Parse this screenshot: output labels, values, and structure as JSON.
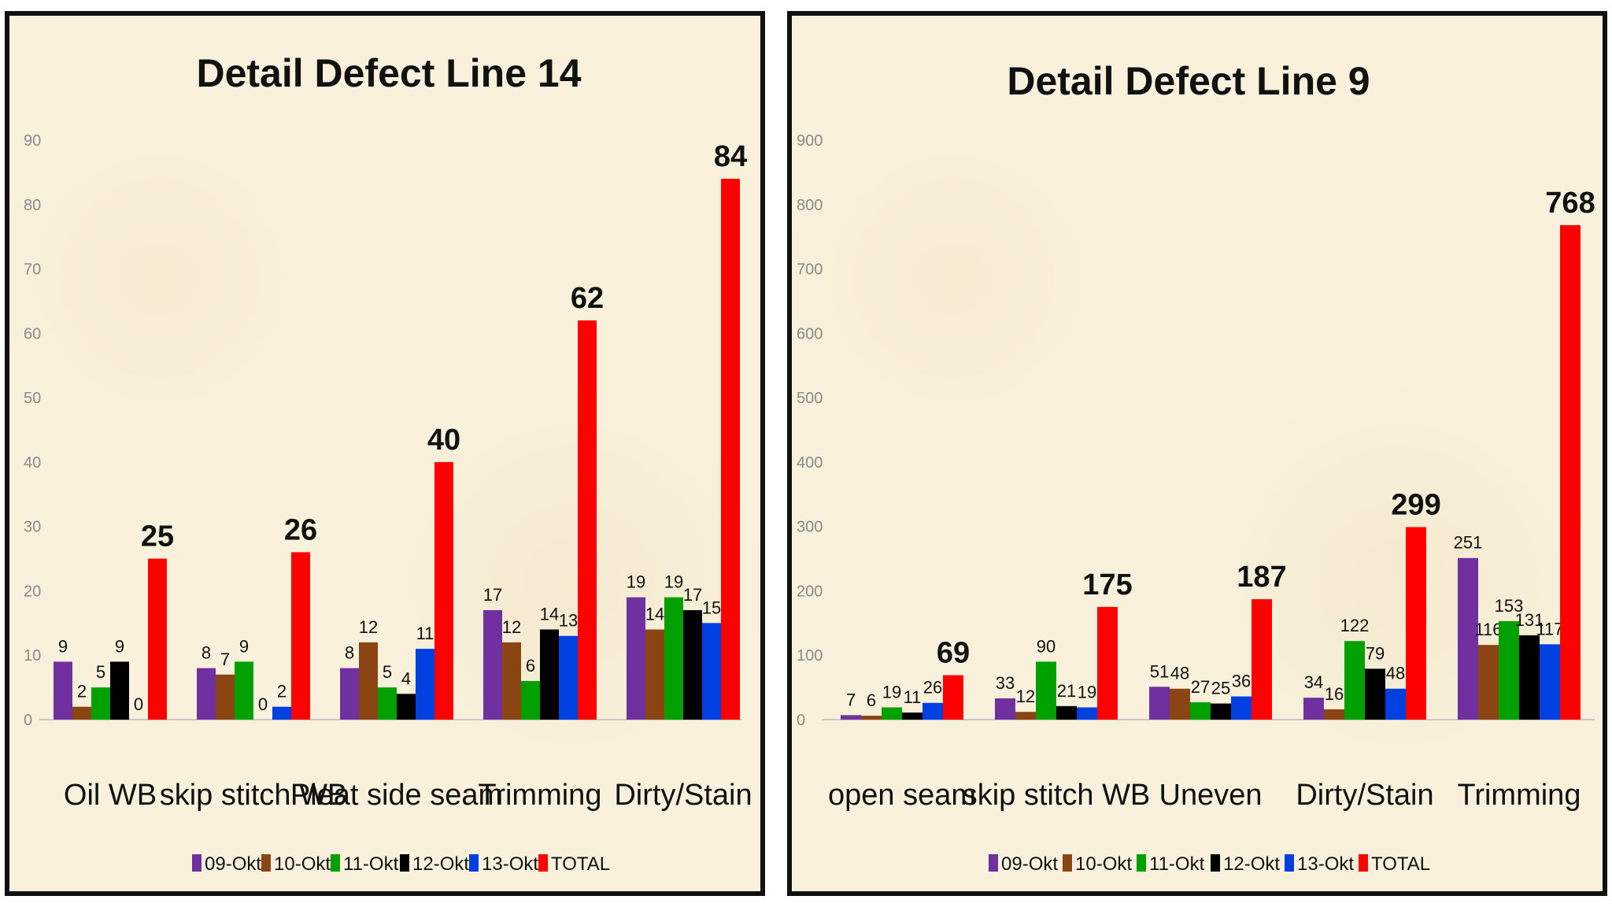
{
  "colors": {
    "09-Okt": "#7030a0",
    "10-Okt": "#8b4513",
    "11-Okt": "#00a000",
    "12-Okt": "#000000",
    "13-Okt": "#0040e0",
    "TOTAL": "#ff0000"
  },
  "chart_data": [
    {
      "type": "bar",
      "title": "Detail Defect Line 14",
      "categories": [
        "Oil WB",
        "skip stitch WB",
        "Pleat side seam",
        "Trimming",
        "Dirty/Stain"
      ],
      "series": [
        {
          "name": "09-Okt",
          "values": [
            9,
            8,
            8,
            17,
            19
          ]
        },
        {
          "name": "10-Okt",
          "values": [
            2,
            7,
            12,
            12,
            14
          ]
        },
        {
          "name": "11-Okt",
          "values": [
            5,
            9,
            5,
            6,
            19
          ]
        },
        {
          "name": "12-Okt",
          "values": [
            9,
            0,
            4,
            14,
            17
          ]
        },
        {
          "name": "13-Okt",
          "values": [
            0,
            2,
            11,
            13,
            15
          ]
        },
        {
          "name": "TOTAL",
          "values": [
            25,
            26,
            40,
            62,
            84
          ]
        }
      ],
      "yticks": [
        0,
        10,
        20,
        30,
        40,
        50,
        60,
        70,
        80,
        90
      ],
      "ylim": [
        0,
        90
      ],
      "xlabel": "",
      "ylabel": "",
      "legend": "bottom"
    },
    {
      "type": "bar",
      "title": "Detail Defect Line 9",
      "categories": [
        "open seam",
        "skip stitch WB",
        "Uneven",
        "Dirty/Stain",
        "Trimming"
      ],
      "series": [
        {
          "name": "09-Okt",
          "values": [
            7,
            33,
            51,
            34,
            251
          ]
        },
        {
          "name": "10-Okt",
          "values": [
            6,
            12,
            48,
            16,
            116
          ]
        },
        {
          "name": "11-Okt",
          "values": [
            19,
            90,
            27,
            122,
            153
          ]
        },
        {
          "name": "12-Okt",
          "values": [
            11,
            21,
            25,
            79,
            131
          ]
        },
        {
          "name": "13-Okt",
          "values": [
            26,
            19,
            36,
            48,
            117
          ]
        },
        {
          "name": "TOTAL",
          "values": [
            69,
            175,
            187,
            299,
            768
          ]
        }
      ],
      "yticks": [
        0,
        100,
        200,
        300,
        400,
        500,
        600,
        700,
        800,
        900
      ],
      "ylim": [
        0,
        900
      ],
      "xlabel": "",
      "ylabel": "",
      "legend": "bottom"
    }
  ]
}
